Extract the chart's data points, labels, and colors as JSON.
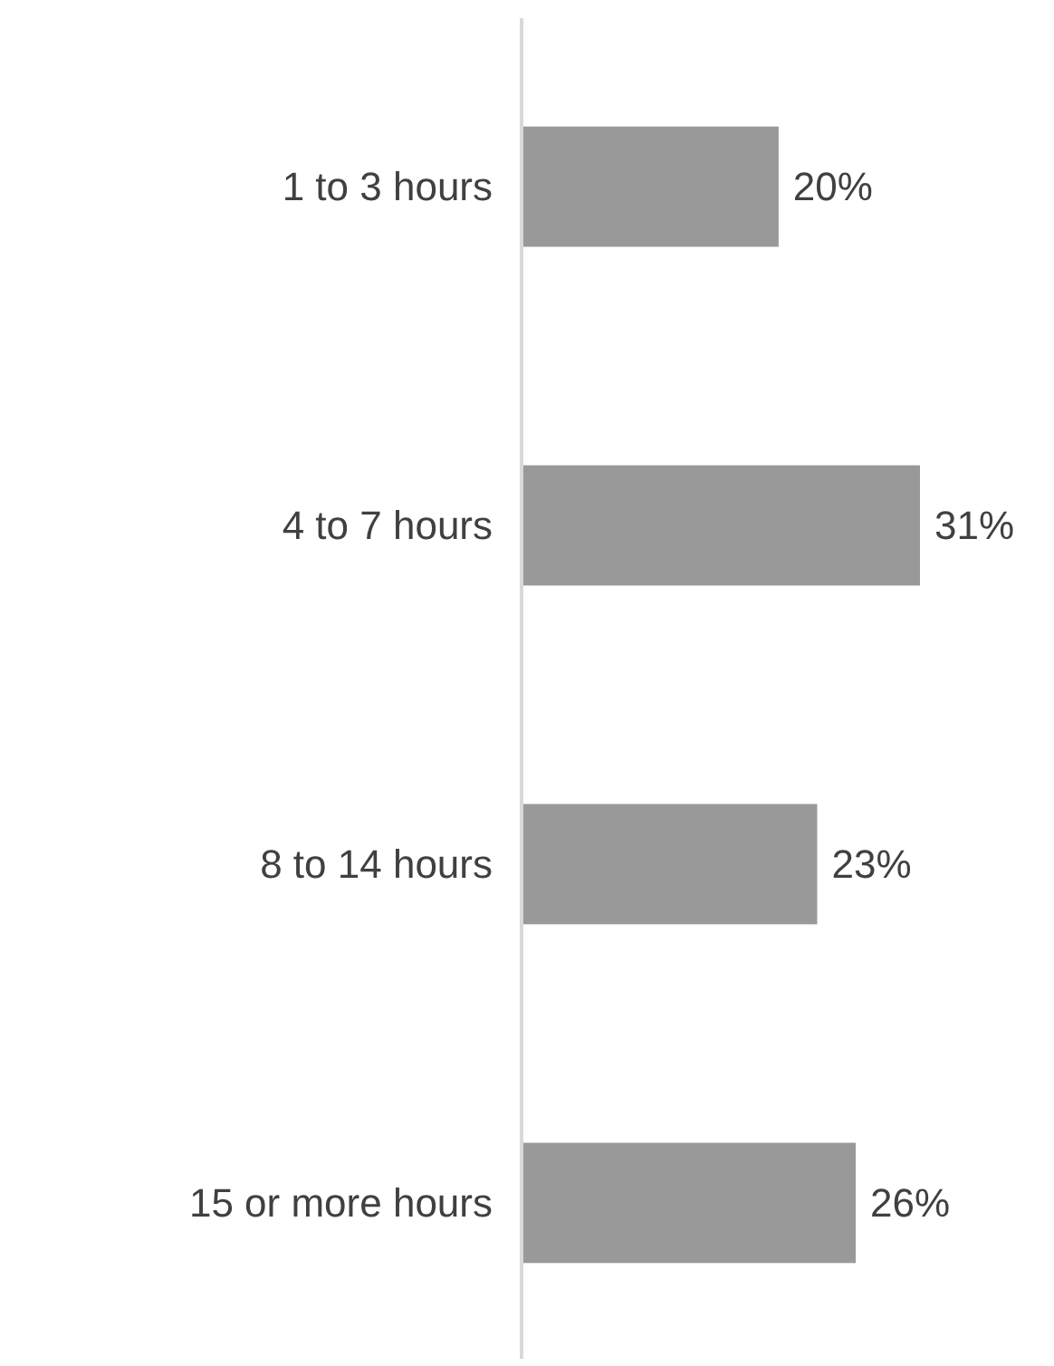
{
  "chart_data": {
    "type": "bar",
    "orientation": "horizontal",
    "categories": [
      "1 to 3 hours",
      "4 to 7 hours",
      "8 to 14 hours",
      "15 or more hours"
    ],
    "values": [
      20,
      31,
      23,
      26
    ],
    "color": "#999999",
    "data_labels": true,
    "value_labels": [
      "20%",
      "31%",
      "23%",
      "26%"
    ]
  }
}
